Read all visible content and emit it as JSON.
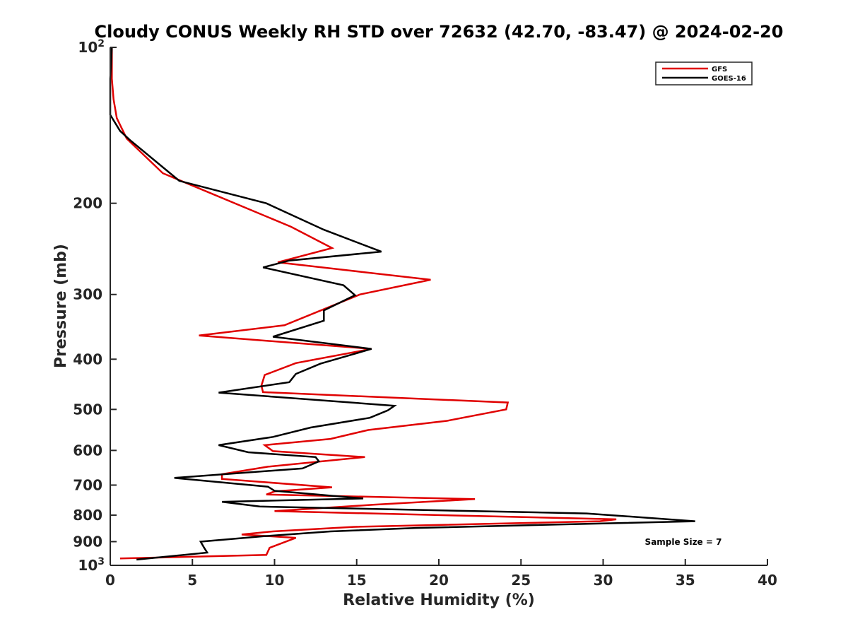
{
  "chart_data": {
    "type": "line",
    "title": "Cloudy CONUS Weekly RH STD over 72632 (42.70, -83.47) @ 2024-02-20",
    "xlabel": "Relative Humidity (%)",
    "ylabel": "Pressure (mb)",
    "xlim": [
      0,
      40
    ],
    "ylim": [
      100,
      1000
    ],
    "yscale": "log",
    "y_reversed": true,
    "x_ticks": [
      0,
      5,
      10,
      15,
      20,
      25,
      30,
      35,
      40
    ],
    "x_tick_labels": [
      "0",
      "5",
      "10",
      "15",
      "20",
      "25",
      "30",
      "35",
      "40"
    ],
    "y_ticks": [
      200,
      300,
      400,
      500,
      600,
      700,
      800,
      900
    ],
    "y_tick_labels": [
      "200",
      "300",
      "400",
      "500",
      "600",
      "700",
      "800",
      "900"
    ],
    "y_end_ticks": [
      {
        "value": 100,
        "base": "10",
        "exp": "2"
      },
      {
        "value": 1000,
        "base": "10",
        "exp": "3"
      }
    ],
    "grid": false,
    "legend_position": "top-right",
    "annotation": "Sample Size = 7",
    "series": [
      {
        "name": "GFS",
        "color": "#e00000",
        "points": [
          [
            0.1,
            100
          ],
          [
            0.1,
            115
          ],
          [
            0.2,
            126
          ],
          [
            0.4,
            137
          ],
          [
            1.0,
            150
          ],
          [
            3.2,
            175
          ],
          [
            11.0,
            222
          ],
          [
            13.5,
            244
          ],
          [
            10.2,
            260
          ],
          [
            19.5,
            281
          ],
          [
            15.2,
            300
          ],
          [
            10.6,
            344
          ],
          [
            5.4,
            360
          ],
          [
            15.9,
            382
          ],
          [
            11.3,
            407
          ],
          [
            9.4,
            429
          ],
          [
            9.2,
            450
          ],
          [
            9.3,
            463
          ],
          [
            24.2,
            485
          ],
          [
            24.1,
            500
          ],
          [
            20.5,
            526
          ],
          [
            15.7,
            548
          ],
          [
            13.4,
            570
          ],
          [
            9.4,
            586
          ],
          [
            9.9,
            602
          ],
          [
            15.5,
            618
          ],
          [
            9.6,
            645
          ],
          [
            6.8,
            667
          ],
          [
            6.8,
            681
          ],
          [
            13.5,
            707
          ],
          [
            10.0,
            720
          ],
          [
            9.5,
            730
          ],
          [
            22.2,
            745
          ],
          [
            16.0,
            764
          ],
          [
            10.0,
            786
          ],
          [
            30.8,
            815
          ],
          [
            29.8,
            822
          ],
          [
            14.8,
            843
          ],
          [
            9.9,
            860
          ],
          [
            8.0,
            872
          ],
          [
            11.3,
            885
          ],
          [
            9.7,
            925
          ],
          [
            9.5,
            955
          ],
          [
            0.6,
            970
          ]
        ]
      },
      {
        "name": "GOES-16",
        "color": "#000000",
        "points": [
          [
            0.1,
            100
          ],
          [
            0.0,
            115
          ],
          [
            0.0,
            126
          ],
          [
            0.0,
            135
          ],
          [
            0.6,
            145
          ],
          [
            1.2,
            151
          ],
          [
            4.2,
            181
          ],
          [
            9.5,
            200
          ],
          [
            13.0,
            225
          ],
          [
            16.5,
            248
          ],
          [
            10.9,
            258
          ],
          [
            9.3,
            266
          ],
          [
            14.2,
            288
          ],
          [
            14.9,
            301
          ],
          [
            13.0,
            322
          ],
          [
            13.0,
            337
          ],
          [
            9.9,
            362
          ],
          [
            15.9,
            382
          ],
          [
            12.8,
            408
          ],
          [
            11.3,
            427
          ],
          [
            10.9,
            443
          ],
          [
            6.6,
            464
          ],
          [
            17.3,
            492
          ],
          [
            16.9,
            502
          ],
          [
            15.8,
            519
          ],
          [
            12.2,
            542
          ],
          [
            9.9,
            565
          ],
          [
            6.6,
            586
          ],
          [
            8.4,
            605
          ],
          [
            12.5,
            618
          ],
          [
            12.7,
            630
          ],
          [
            11.7,
            650
          ],
          [
            3.9,
            678
          ],
          [
            9.6,
            705
          ],
          [
            10.0,
            718
          ],
          [
            15.4,
            743
          ],
          [
            6.8,
            754
          ],
          [
            9.1,
            770
          ],
          [
            29.0,
            794
          ],
          [
            35.6,
            822
          ],
          [
            18.6,
            847
          ],
          [
            13.4,
            860
          ],
          [
            9.3,
            879
          ],
          [
            5.5,
            900
          ],
          [
            5.7,
            923
          ],
          [
            5.9,
            945
          ],
          [
            1.6,
            975
          ]
        ]
      }
    ]
  }
}
